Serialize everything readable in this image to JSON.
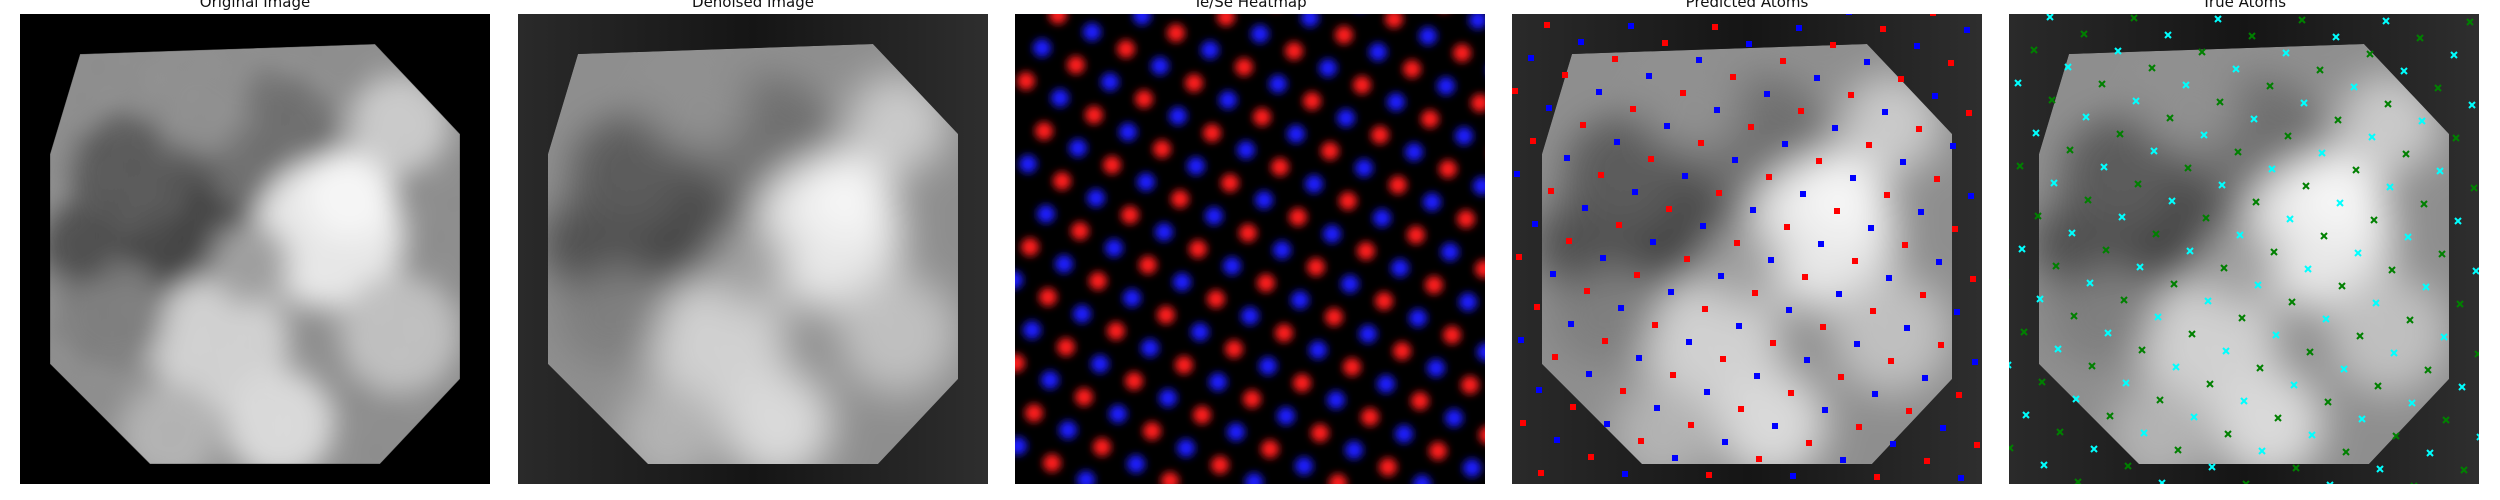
{
  "panels": [
    {
      "title": "Original Image",
      "kind": "original"
    },
    {
      "title": "Denoised Image",
      "kind": "denoised"
    },
    {
      "title": "Te/Se Heatmap",
      "kind": "heatmap"
    },
    {
      "title": "Predicted Atoms",
      "kind": "predicted"
    },
    {
      "title": "True Atoms",
      "kind": "true"
    }
  ],
  "colors": {
    "te": "#ff1a1a",
    "se": "#1a1aff",
    "pred_te": "#ff0000",
    "pred_se": "#0000ff",
    "true_te": "#00ffff",
    "true_se": "#008000"
  }
}
